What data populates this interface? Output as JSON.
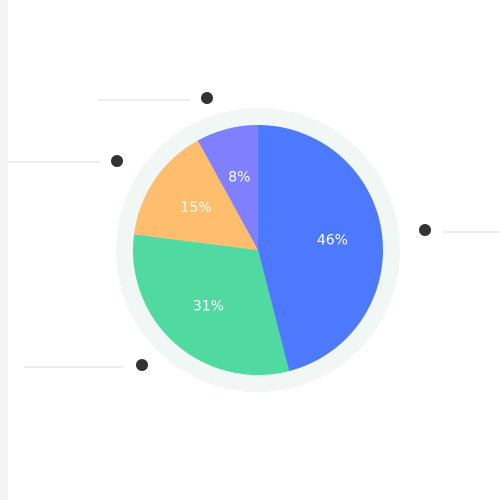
{
  "chart_data": {
    "type": "pie",
    "title": "",
    "start_angle_deg": 0,
    "direction": "clockwise",
    "slices": [
      {
        "value": 46,
        "label": "46%",
        "color": "#4d79ff"
      },
      {
        "value": 31,
        "label": "31%",
        "color": "#50d9a0"
      },
      {
        "value": 15,
        "label": "15%",
        "color": "#ffbe6e"
      },
      {
        "value": 8,
        "label": "8%",
        "color": "#8080ff"
      }
    ],
    "ring_color": "#f0f7f5",
    "legend": {
      "placement": "around",
      "marker_color": "#333333",
      "line_color": "#dddddd"
    }
  }
}
